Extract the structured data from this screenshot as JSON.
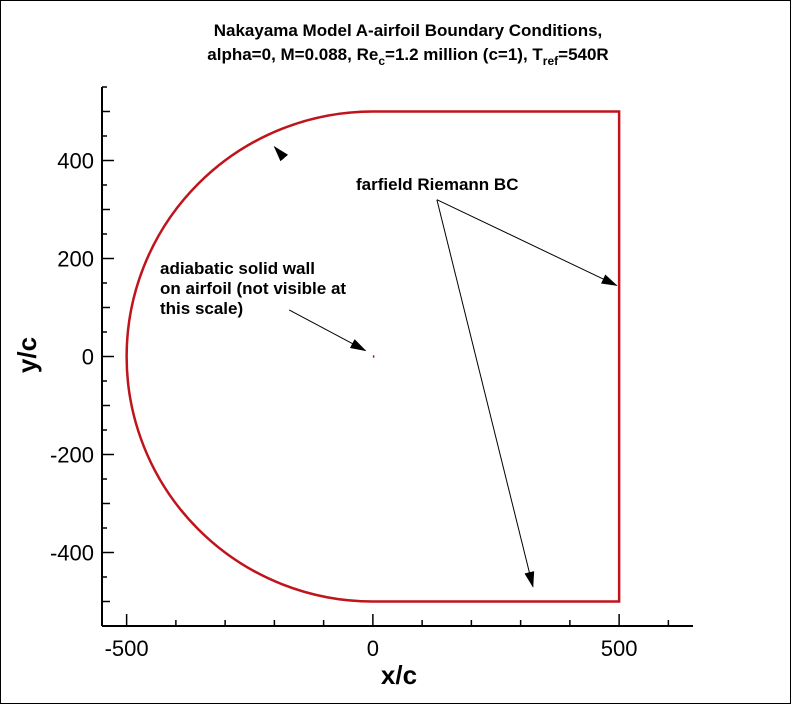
{
  "title": {
    "line1": "Nakayama Model A-airfoil Boundary Conditions,",
    "line2_a": "alpha=0, M=0.088, Re",
    "line2_sub1": "c",
    "line2_b": "=1.2 million (c=1), T",
    "line2_sub2": "ref",
    "line2_c": "=540R"
  },
  "axes": {
    "xlabel": "x/c",
    "ylabel": "y/c",
    "xlim": [
      -550,
      650
    ],
    "ylim": [
      -550,
      550
    ],
    "xticks": [
      -500,
      0,
      500
    ],
    "xtick_labels": [
      "-500",
      "0",
      "500"
    ],
    "yticks": [
      -400,
      -200,
      0,
      200,
      400
    ],
    "ytick_labels": [
      "-400",
      "-200",
      "0",
      "200",
      "400"
    ],
    "x_minor_step": 100,
    "y_minor_step": 100
  },
  "annotations": {
    "farfield": "farfield Riemann BC",
    "wall_line1": "adiabatic solid wall",
    "wall_line2": "on airfoil (not visible at",
    "wall_line3": "this scale)"
  },
  "chart_data": {
    "type": "line",
    "boundary_color": "#c0141c",
    "arrow_color": "#000000",
    "domain": {
      "semicircle_center": [
        0,
        0
      ],
      "semicircle_radius": 500,
      "rect_x": [
        0,
        500
      ],
      "rect_y": [
        -500,
        500
      ]
    },
    "airfoil": {
      "x": [
        0,
        1
      ],
      "y": [
        0,
        0
      ]
    },
    "arrows": [
      {
        "from": [
          -180,
          405
        ],
        "to": [
          -200,
          428
        ]
      },
      {
        "from": [
          130,
          320
        ],
        "to": [
          495,
          145
        ]
      },
      {
        "from": [
          130,
          320
        ],
        "to": [
          325,
          -470
        ]
      },
      {
        "from": [
          -170,
          95
        ],
        "to": [
          -15,
          12
        ]
      }
    ]
  }
}
